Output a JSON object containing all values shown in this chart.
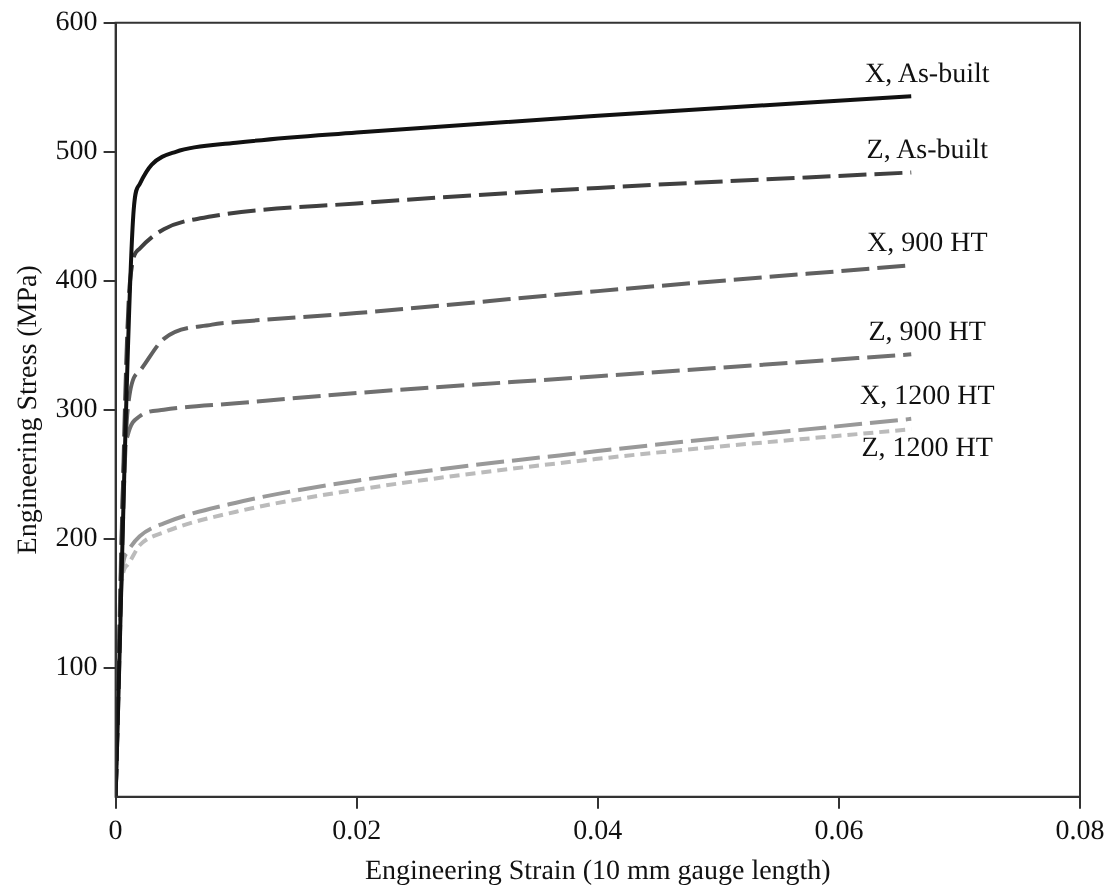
{
  "chart_data": {
    "type": "line",
    "xlabel": "Engineering Strain (10 mm gauge length)",
    "ylabel": "Engineering Stress (MPa)",
    "xlim": [
      0,
      0.08
    ],
    "xticks": [
      0,
      0.02,
      0.04,
      0.06,
      0.08
    ],
    "ylim": [
      0,
      600
    ],
    "yticks": [
      100,
      200,
      300,
      400,
      500,
      600
    ],
    "grid": false,
    "legend": false,
    "marker": "none",
    "series": [
      {
        "name": "X, As-built",
        "color": "#111111",
        "line_style": "solid",
        "x": [
          0,
          0.0015,
          0.002,
          0.003,
          0.005,
          0.01,
          0.02,
          0.04,
          0.066
        ],
        "values": [
          0,
          455,
          475,
          490,
          500,
          507,
          515,
          528,
          543
        ]
      },
      {
        "name": "Z, As-built",
        "color": "#404040",
        "line_style": "dashed",
        "x": [
          0,
          0.0012,
          0.002,
          0.004,
          0.008,
          0.02,
          0.04,
          0.066
        ],
        "values": [
          0,
          400,
          425,
          440,
          450,
          460,
          472,
          484
        ]
      },
      {
        "name": "X, 900 HT",
        "color": "#606060",
        "line_style": "dashed",
        "x": [
          0,
          0.001,
          0.002,
          0.004,
          0.008,
          0.01,
          0.02,
          0.04,
          0.066
        ],
        "values": [
          0,
          300,
          330,
          355,
          366,
          368,
          375,
          392,
          412
        ]
      },
      {
        "name": "Z, 900 HT",
        "color": "#707070",
        "line_style": "dashed",
        "x": [
          0,
          0.0007,
          0.001,
          0.002,
          0.004,
          0.01,
          0.02,
          0.04,
          0.066
        ],
        "values": [
          0,
          260,
          280,
          295,
          300,
          305,
          313,
          326,
          343
        ]
      },
      {
        "name": "X, 1200 HT",
        "color": "#999999",
        "line_style": "dashed",
        "x": [
          0,
          0.0005,
          0.001,
          0.002,
          0.004,
          0.01,
          0.02,
          0.04,
          0.066
        ],
        "values": [
          0,
          170,
          190,
          202,
          212,
          228,
          245,
          268,
          293
        ]
      },
      {
        "name": "Z, 1200 HT",
        "color": "#bbbbbb",
        "line_style": "dotted",
        "x": [
          0,
          0.0005,
          0.001,
          0.002,
          0.004,
          0.01,
          0.02,
          0.04,
          0.066
        ],
        "values": [
          0,
          165,
          180,
          195,
          205,
          221,
          238,
          262,
          285
        ]
      }
    ]
  }
}
